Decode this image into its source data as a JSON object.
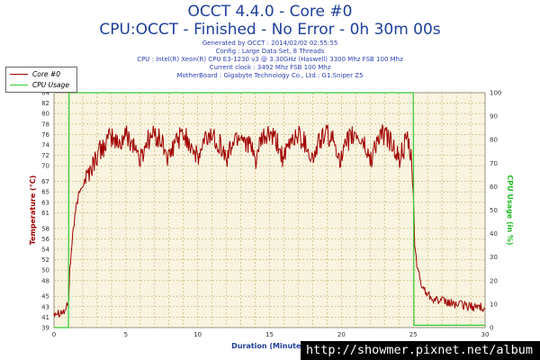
{
  "header": {
    "title": "OCCT 4.4.0 - Core #0",
    "subtitle": "CPU:OCCT - Finished - No Error - 0h 30m 00s"
  },
  "info_lines": [
    "Generated by OCCT : 2014/02/02 02:55:55",
    "Config : Large Data Set, 8 Threads",
    "CPU : Intel(R) Xeon(R) CPU E3-1230 v3 @ 3.30GHz (Haswell) 3300 Mhz FSB 100 Mhz",
    "Current clock : 3492 Mhz FSB 100 Mhz",
    "MotherBoard : Gigabyte Technology Co., Ltd.: G1.Sniper Z5"
  ],
  "legend": {
    "items": [
      {
        "label": "Core #0",
        "color": "#a00000"
      },
      {
        "label": "CPU Usage",
        "color": "#33cc33"
      }
    ]
  },
  "watermark": "http://showmer.pixnet.net/album",
  "colors": {
    "plot_bg": "#f8f4e0",
    "grid": "#c8a860",
    "temp_line": "#a00000",
    "usage_line": "#33cc33",
    "title": "#1f3f9a"
  },
  "chart_data": {
    "type": "line",
    "xlabel": "Duration (Minutes)",
    "ylabel": "Temperature (°C)",
    "y2label": "CPU Usage (in %)",
    "xlim": [
      0,
      30
    ],
    "ylim": [
      39,
      84
    ],
    "y2lim": [
      0,
      100
    ],
    "x_ticks": [
      0,
      5,
      10,
      15,
      20,
      25,
      30
    ],
    "y_ticks": [
      39,
      41,
      43,
      45,
      48,
      50,
      52,
      54,
      56,
      58,
      61,
      63,
      65,
      67,
      70,
      72,
      74,
      76,
      78,
      80,
      82,
      84
    ],
    "y2_ticks": [
      0,
      10,
      20,
      30,
      40,
      50,
      60,
      70,
      80,
      90,
      100
    ],
    "grid": true,
    "legend_position": "top-left",
    "series": [
      {
        "name": "Core #0",
        "axis": "left",
        "points": [
          [
            0,
            42
          ],
          [
            0.3,
            42
          ],
          [
            0.7,
            42
          ],
          [
            0.9,
            43
          ],
          [
            1,
            44
          ],
          [
            1.1,
            50
          ],
          [
            1.3,
            57
          ],
          [
            1.6,
            63
          ],
          [
            2,
            67
          ],
          [
            2.5,
            69
          ],
          [
            3,
            72
          ],
          [
            3.5,
            74
          ],
          [
            4,
            75.5
          ],
          [
            4.5,
            74
          ],
          [
            5,
            76
          ],
          [
            5.6,
            74
          ],
          [
            6,
            71
          ],
          [
            6.5,
            75
          ],
          [
            7,
            76
          ],
          [
            7.6,
            74
          ],
          [
            8,
            71
          ],
          [
            8.5,
            75
          ],
          [
            9,
            76
          ],
          [
            9.6,
            74
          ],
          [
            10,
            71
          ],
          [
            10.5,
            75
          ],
          [
            11,
            76
          ],
          [
            11.6,
            74
          ],
          [
            12,
            71
          ],
          [
            12.5,
            75
          ],
          [
            13,
            76
          ],
          [
            13.6,
            74
          ],
          [
            14,
            71
          ],
          [
            14.5,
            75
          ],
          [
            15,
            76
          ],
          [
            15.6,
            74
          ],
          [
            16,
            71
          ],
          [
            16.5,
            75
          ],
          [
            17,
            76
          ],
          [
            17.6,
            74
          ],
          [
            18,
            71
          ],
          [
            18.5,
            75
          ],
          [
            19,
            76
          ],
          [
            19.6,
            74
          ],
          [
            20,
            71
          ],
          [
            20.5,
            75
          ],
          [
            21,
            76
          ],
          [
            21.6,
            74
          ],
          [
            22,
            71
          ],
          [
            22.5,
            75
          ],
          [
            23,
            76
          ],
          [
            23.6,
            74
          ],
          [
            24,
            71
          ],
          [
            24.6,
            75
          ],
          [
            24.85,
            71
          ],
          [
            25,
            65
          ],
          [
            25.1,
            55
          ],
          [
            25.3,
            50
          ],
          [
            25.6,
            47
          ],
          [
            26,
            45.5
          ],
          [
            26.5,
            44.5
          ],
          [
            27,
            44
          ],
          [
            28,
            43.5
          ],
          [
            29,
            43
          ],
          [
            30,
            43
          ]
        ]
      },
      {
        "name": "CPU Usage",
        "axis": "right",
        "points": [
          [
            0,
            0
          ],
          [
            1,
            0
          ],
          [
            1.05,
            100
          ],
          [
            25,
            100
          ],
          [
            25.05,
            1
          ],
          [
            30,
            1
          ]
        ]
      }
    ]
  }
}
